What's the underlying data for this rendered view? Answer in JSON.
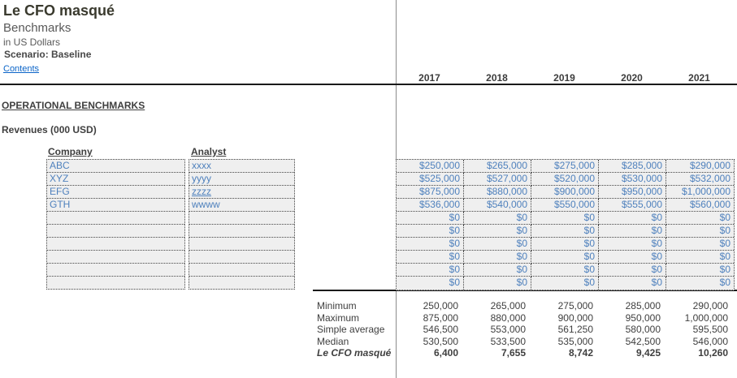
{
  "page": {
    "title": "Le CFO masqué",
    "subtitle": "Benchmarks",
    "unit_note": "in US Dollars",
    "scenario": "Scenario: Baseline",
    "contents_link": "Contents"
  },
  "years": [
    "2017",
    "2018",
    "2019",
    "2020",
    "2021"
  ],
  "section": {
    "heading": "OPERATIONAL BENCHMARKS",
    "metric_label": "Revenues (000 USD)"
  },
  "benchmarks": {
    "company_header": "Company",
    "analyst_header": "Analyst",
    "rows": [
      {
        "company": "ABC",
        "analyst": "xxxx",
        "values": [
          "$250,000",
          "$265,000",
          "$275,000",
          "$285,000",
          "$290,000"
        ]
      },
      {
        "company": "XYZ",
        "analyst": "yyyy",
        "values": [
          "$525,000",
          "$527,000",
          "$520,000",
          "$530,000",
          "$532,000"
        ]
      },
      {
        "company": "EFG",
        "analyst": "zzzz",
        "values": [
          "$875,000",
          "$880,000",
          "$900,000",
          "$950,000",
          "$1,000,000"
        ]
      },
      {
        "company": "GTH",
        "analyst": "wwww",
        "values": [
          "$536,000",
          "$540,000",
          "$550,000",
          "$555,000",
          "$560,000"
        ]
      },
      {
        "company": "",
        "analyst": "",
        "values": [
          "$0",
          "$0",
          "$0",
          "$0",
          "$0"
        ]
      },
      {
        "company": "",
        "analyst": "",
        "values": [
          "$0",
          "$0",
          "$0",
          "$0",
          "$0"
        ]
      },
      {
        "company": "",
        "analyst": "",
        "values": [
          "$0",
          "$0",
          "$0",
          "$0",
          "$0"
        ]
      },
      {
        "company": "",
        "analyst": "",
        "values": [
          "$0",
          "$0",
          "$0",
          "$0",
          "$0"
        ]
      },
      {
        "company": "",
        "analyst": "",
        "values": [
          "$0",
          "$0",
          "$0",
          "$0",
          "$0"
        ]
      },
      {
        "company": "",
        "analyst": "",
        "values": [
          "$0",
          "$0",
          "$0",
          "$0",
          "$0"
        ]
      }
    ]
  },
  "summary": {
    "rows": [
      {
        "label": "Minimum",
        "values": [
          "250,000",
          "265,000",
          "275,000",
          "285,000",
          "290,000"
        ]
      },
      {
        "label": "Maximum",
        "values": [
          "875,000",
          "880,000",
          "900,000",
          "950,000",
          "1,000,000"
        ]
      },
      {
        "label": "Simple average",
        "values": [
          "546,500",
          "553,000",
          "561,250",
          "580,000",
          "595,500"
        ]
      },
      {
        "label": "Median",
        "values": [
          "530,500",
          "533,500",
          "535,000",
          "542,500",
          "546,000"
        ]
      },
      {
        "label": "Le CFO masqué",
        "values": [
          "6,400",
          "7,655",
          "8,742",
          "9,425",
          "10,260"
        ]
      }
    ]
  },
  "colors": {
    "input_text": "#4f81bd",
    "input_bg": "#efefef",
    "link": "#0a64c8",
    "title_text": "#3a3a2e",
    "body_text": "#3f3f3f",
    "rule_line": "#1a1a1a"
  }
}
